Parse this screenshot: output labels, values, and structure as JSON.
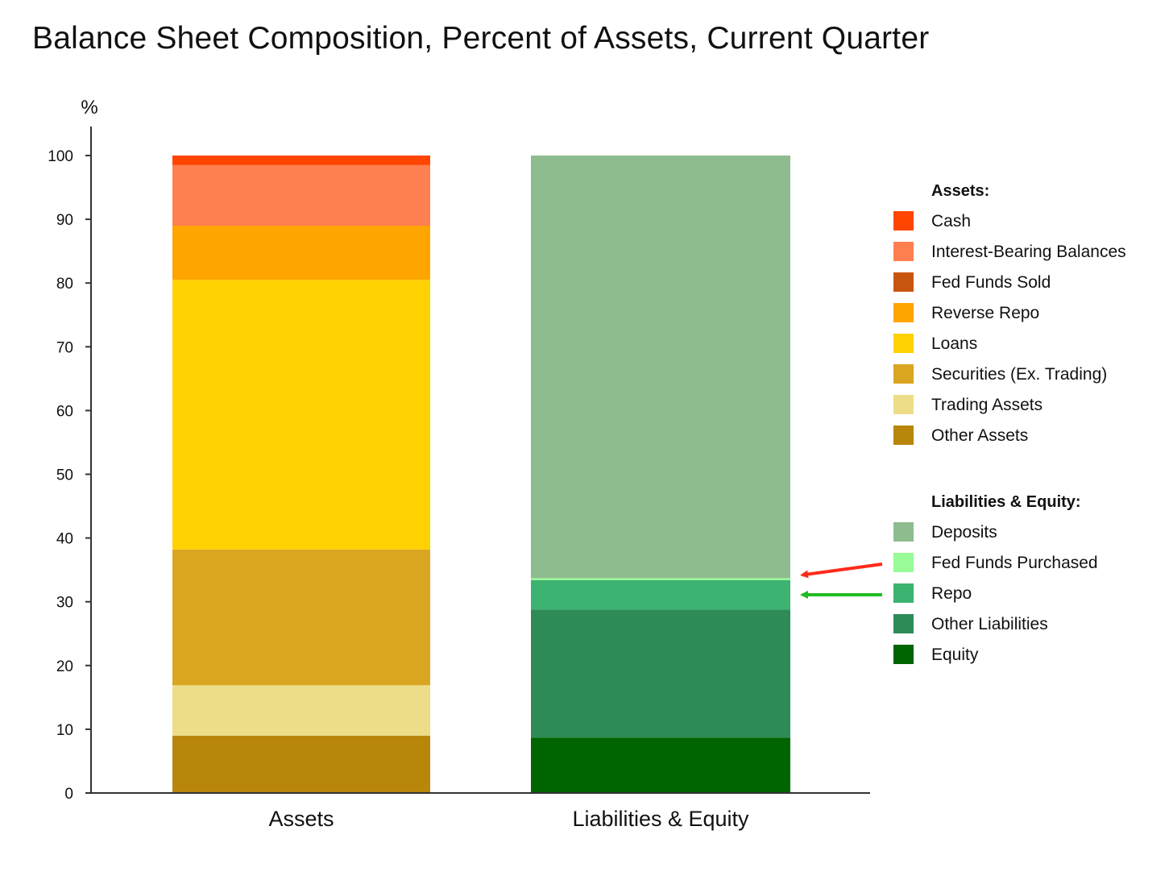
{
  "chart_data": {
    "type": "bar",
    "stacked": true,
    "title": "Balance Sheet Composition, Percent of Assets, Current Quarter",
    "ylabel": "%",
    "xlabel": "",
    "ylim": [
      0,
      100
    ],
    "yticks": [
      0,
      10,
      20,
      30,
      40,
      50,
      60,
      70,
      80,
      90,
      100
    ],
    "grid": false,
    "legend_position": "right",
    "categories": [
      "Assets",
      "Liabilities & Equity"
    ],
    "groups": [
      {
        "heading": "Assets:",
        "category": "Assets",
        "series": [
          {
            "name": "Cash",
            "color": "#FF4500",
            "value": 1.5
          },
          {
            "name": "Interest-Bearing Balances",
            "color": "#FF7F50",
            "value": 9.5
          },
          {
            "name": "Fed Funds Sold",
            "color": "#C8550F",
            "value": 0.0
          },
          {
            "name": "Reverse Repo",
            "color": "#FFA500",
            "value": 8.5
          },
          {
            "name": "Loans",
            "color": "#FFD100",
            "value": 42.3
          },
          {
            "name": "Securities (Ex. Trading)",
            "color": "#DAA520",
            "value": 21.3
          },
          {
            "name": "Trading Assets",
            "color": "#EEDD88",
            "value": 7.9
          },
          {
            "name": "Other Assets",
            "color": "#B8860B",
            "value": 9.0
          }
        ]
      },
      {
        "heading": "Liabilities & Equity:",
        "category": "Liabilities & Equity",
        "series": [
          {
            "name": "Deposits",
            "color": "#8FBC8F",
            "value": 66.3
          },
          {
            "name": "Fed Funds Purchased",
            "color": "#98FB98",
            "value": 0.3
          },
          {
            "name": "Repo",
            "color": "#3CB371",
            "value": 4.6
          },
          {
            "name": "Other Liabilities",
            "color": "#2E8B57",
            "value": 20.1
          },
          {
            "name": "Equity",
            "color": "#006400",
            "value": 8.7
          }
        ]
      }
    ],
    "annotations": [
      {
        "type": "arrow",
        "color": "#FF2A1A",
        "points_to": "Fed Funds Purchased"
      },
      {
        "type": "arrow",
        "color": "#22BB22",
        "points_to": "Repo"
      }
    ]
  }
}
